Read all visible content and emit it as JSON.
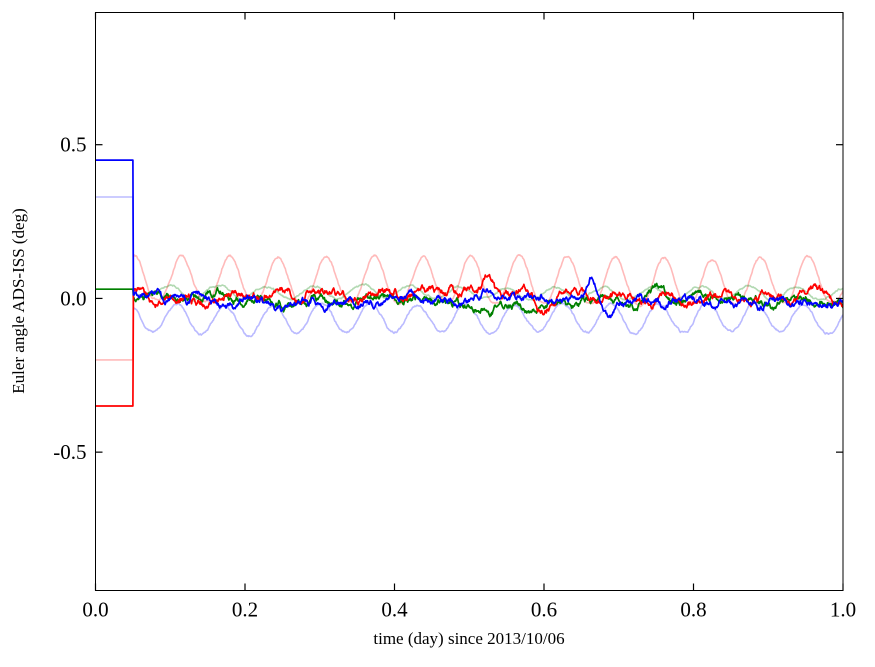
{
  "figure": {
    "background": "#ffffff"
  },
  "chart_data": {
    "type": "line",
    "title": "",
    "xlabel": "time (day) since 2013/10/06",
    "ylabel": "Euler angle ADS-ISS (deg)",
    "xlim": [
      0.0,
      1.0
    ],
    "ylim": [
      -0.95,
      0.93
    ],
    "xticks": [
      {
        "value": 0.0,
        "label": "0.0"
      },
      {
        "value": 0.2,
        "label": "0.2"
      },
      {
        "value": 0.4,
        "label": "0.4"
      },
      {
        "value": 0.6,
        "label": "0.6"
      },
      {
        "value": 0.8,
        "label": "0.8"
      },
      {
        "value": 1.0,
        "label": "1.0"
      }
    ],
    "yticks": [
      {
        "value": -0.5,
        "label": "-0.5"
      },
      {
        "value": 0.0,
        "label": "0.0"
      },
      {
        "value": 0.5,
        "label": "0.5"
      }
    ],
    "grid": false,
    "legend": "none",
    "orbit_period_day": 0.0645,
    "series": [
      {
        "name": "blue-faint",
        "color": "#0000ff",
        "opacity": 0.27,
        "width": 1.6,
        "seed": 101,
        "initial_value": 0.33,
        "step_time": 0.05,
        "baseline": -0.025,
        "noise_amp": 0.005,
        "osc": {
          "shape": "dip",
          "period": 0.0645,
          "t0": 0.103,
          "amp": 0.08,
          "power": 2,
          "sine_amp": 0.025
        }
      },
      {
        "name": "red-faint",
        "color": "#ff0000",
        "opacity": 0.27,
        "width": 1.6,
        "seed": 202,
        "initial_value": -0.2,
        "step_time": 0.05,
        "baseline": -0.012,
        "noise_amp": 0.005,
        "osc": {
          "shape": "peak",
          "period": 0.0645,
          "t0": 0.083,
          "amp": 0.15,
          "power": 2.5
        }
      },
      {
        "name": "green-faint",
        "color": "#008000",
        "opacity": 0.3,
        "width": 1.6,
        "seed": 303,
        "initial_value": 0.03,
        "step_time": 0.05,
        "baseline": 0.018,
        "noise_amp": 0.004,
        "osc": {
          "shape": "sine",
          "period": 0.0645,
          "t0": 0.083,
          "amp": 0.02
        }
      },
      {
        "name": "green",
        "color": "#008000",
        "opacity": 1.0,
        "width": 1.7,
        "seed": 404,
        "initial_value": 0.03,
        "step_time": 0.05,
        "baseline": -0.01,
        "noise_amp": 0.015,
        "osc": {
          "shape": "sine",
          "period": 0.0645,
          "t0": 0.02,
          "amp": 0.008
        },
        "events": [
          {
            "t": 0.755,
            "amp": 0.045,
            "sigma": 0.008
          }
        ]
      },
      {
        "name": "red",
        "color": "#ff0000",
        "opacity": 1.0,
        "width": 1.7,
        "seed": 505,
        "initial_value": -0.35,
        "step_time": 0.05,
        "baseline": -0.003,
        "noise_amp": 0.016,
        "osc": {
          "shape": "sine",
          "period": 0.0645,
          "t0": 0.04,
          "amp": 0.008
        },
        "events": [
          {
            "t": 0.525,
            "amp": 0.05,
            "sigma": 0.007
          },
          {
            "t": 0.6,
            "amp": -0.04,
            "sigma": 0.01
          }
        ]
      },
      {
        "name": "blue",
        "color": "#0000ff",
        "opacity": 1.0,
        "width": 1.7,
        "seed": 606,
        "initial_value": 0.45,
        "step_time": 0.05,
        "baseline": 0.004,
        "noise_amp": 0.015,
        "osc": {
          "shape": "sine",
          "period": 0.0645,
          "t0": 0.0,
          "amp": 0.008
        },
        "events": [
          {
            "t": 0.665,
            "amp": 0.065,
            "sigma": 0.006
          },
          {
            "t": 0.685,
            "amp": -0.045,
            "sigma": 0.009
          }
        ]
      }
    ]
  }
}
